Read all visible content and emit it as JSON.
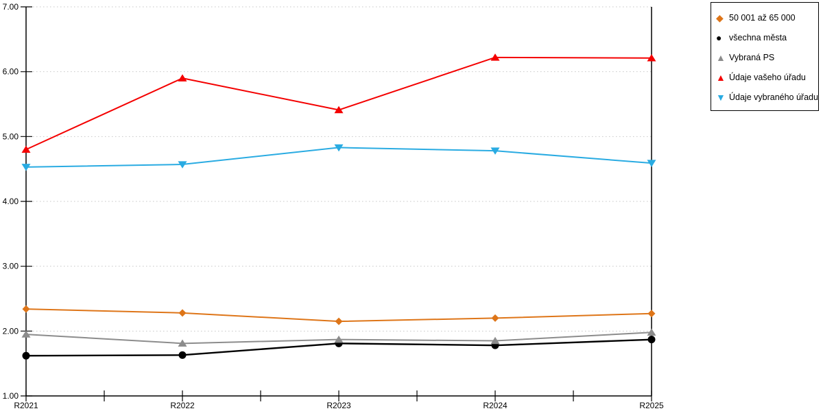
{
  "chart_data": {
    "type": "line",
    "title": "",
    "xlabel": "",
    "ylabel": "",
    "x_categories": [
      "R2021",
      "R2022",
      "R2023",
      "R2024",
      "R2025"
    ],
    "y_ticks": [
      "7.00",
      "6.00",
      "5.00",
      "4.00",
      "3.00",
      "2.00",
      "1.00"
    ],
    "ylim": [
      1.0,
      7.0
    ],
    "grid": "dotted-horizontal",
    "legend_position": "outside-top-right",
    "series": [
      {
        "name": "50 001 až 65 000",
        "icon": "diamond-icon",
        "marker": "diamond",
        "color": "#DE7518",
        "values": [
          2.34,
          2.28,
          2.15,
          2.2,
          2.27
        ]
      },
      {
        "name": "všechna města",
        "icon": "circle-icon",
        "marker": "circle",
        "color": "#000000",
        "values": [
          1.62,
          1.63,
          1.81,
          1.78,
          1.87
        ]
      },
      {
        "name": "Vybraná PS",
        "icon": "triangle-up-icon",
        "marker": "triangle-up",
        "color": "#8C8C8C",
        "values": [
          1.95,
          1.81,
          1.87,
          1.85,
          1.98
        ]
      },
      {
        "name": "Údaje vašeho úřadu",
        "icon": "triangle-up-icon",
        "marker": "triangle-up",
        "color": "#F40000",
        "values": [
          4.8,
          5.9,
          5.41,
          6.22,
          6.21
        ]
      },
      {
        "name": "Údaje vybraného úřadu",
        "icon": "triangle-down-icon",
        "marker": "triangle-down",
        "color": "#29ABE2",
        "values": [
          4.53,
          4.57,
          4.83,
          4.78,
          4.59
        ]
      }
    ]
  }
}
